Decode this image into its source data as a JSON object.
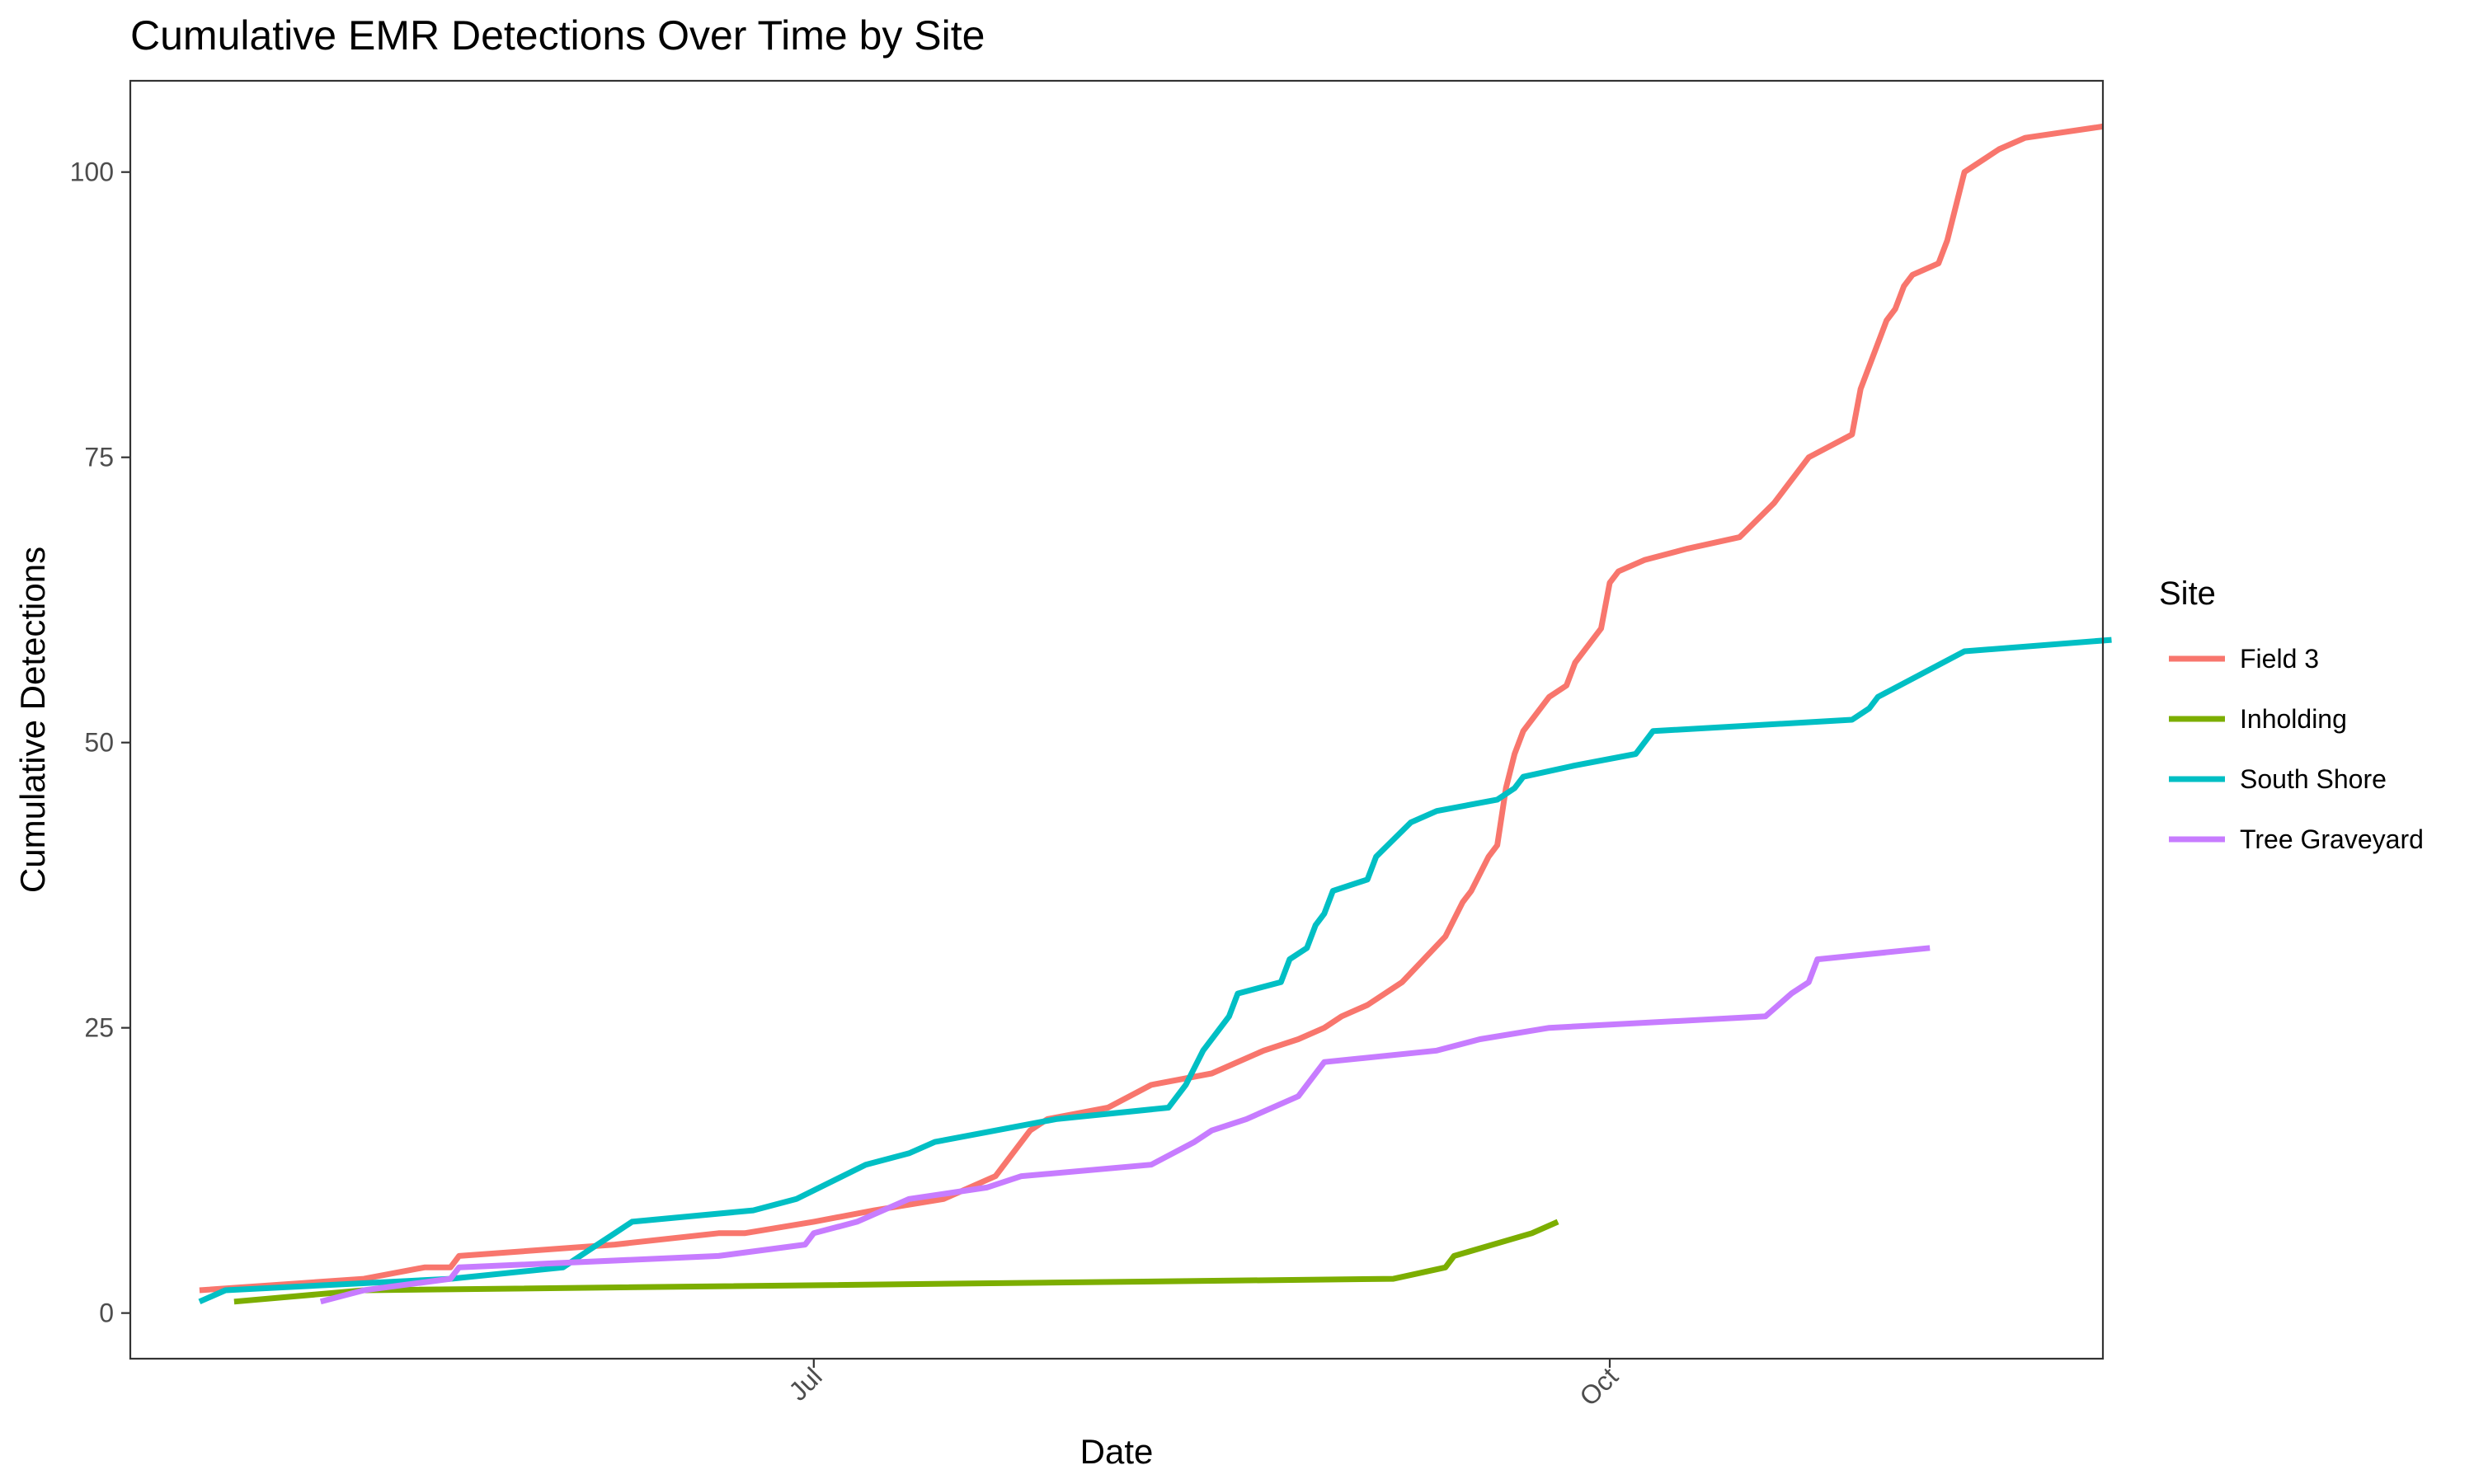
{
  "chart_data": {
    "type": "line",
    "title": "Cumulative EMR Detections Over Time by Site",
    "xlabel": "Date",
    "ylabel": "Cumulative Detections",
    "xlim": [
      "2023-04-13",
      "2023-11-27"
    ],
    "ylim": [
      -4,
      108
    ],
    "x_ticks": [
      {
        "date": "2023-07-01",
        "label": "Jul"
      },
      {
        "date": "2023-10-01",
        "label": "Oct"
      }
    ],
    "y_ticks": [
      0,
      25,
      50,
      75,
      100
    ],
    "grid": false,
    "legend": {
      "title": "Site",
      "position": "right"
    },
    "series": [
      {
        "name": "Field 3",
        "color": "#F8766D",
        "points": [
          [
            "2023-04-21",
            2
          ],
          [
            "2023-05-10",
            3
          ],
          [
            "2023-05-17",
            4
          ],
          [
            "2023-05-20",
            4
          ],
          [
            "2023-05-21",
            5
          ],
          [
            "2023-06-08",
            6
          ],
          [
            "2023-06-20",
            7
          ],
          [
            "2023-06-23",
            7
          ],
          [
            "2023-07-01",
            8
          ],
          [
            "2023-07-08",
            9
          ],
          [
            "2023-07-16",
            10
          ],
          [
            "2023-07-22",
            12
          ],
          [
            "2023-07-26",
            16
          ],
          [
            "2023-07-28",
            17
          ],
          [
            "2023-08-04",
            18
          ],
          [
            "2023-08-09",
            20
          ],
          [
            "2023-08-16",
            21
          ],
          [
            "2023-08-22",
            23
          ],
          [
            "2023-08-26",
            24
          ],
          [
            "2023-08-29",
            25
          ],
          [
            "2023-08-31",
            26
          ],
          [
            "2023-09-03",
            27
          ],
          [
            "2023-09-07",
            29
          ],
          [
            "2023-09-12",
            33
          ],
          [
            "2023-09-14",
            36
          ],
          [
            "2023-09-15",
            37
          ],
          [
            "2023-09-17",
            40
          ],
          [
            "2023-09-18",
            41
          ],
          [
            "2023-09-19",
            46
          ],
          [
            "2023-09-20",
            49
          ],
          [
            "2023-09-21",
            51
          ],
          [
            "2023-09-24",
            54
          ],
          [
            "2023-09-26",
            55
          ],
          [
            "2023-09-27",
            57
          ],
          [
            "2023-09-30",
            60
          ],
          [
            "2023-10-01",
            64
          ],
          [
            "2023-10-02",
            65
          ],
          [
            "2023-10-05",
            66
          ],
          [
            "2023-10-10",
            67
          ],
          [
            "2023-10-16",
            68
          ],
          [
            "2023-10-20",
            71
          ],
          [
            "2023-10-24",
            75
          ],
          [
            "2023-10-29",
            77
          ],
          [
            "2023-10-30",
            81
          ],
          [
            "2023-11-02",
            87
          ],
          [
            "2023-11-03",
            88
          ],
          [
            "2023-11-04",
            90
          ],
          [
            "2023-11-05",
            91
          ],
          [
            "2023-11-08",
            92
          ],
          [
            "2023-11-09",
            94
          ],
          [
            "2023-11-11",
            100
          ],
          [
            "2023-11-15",
            102
          ],
          [
            "2023-11-18",
            103
          ],
          [
            "2023-11-27",
            104
          ]
        ]
      },
      {
        "name": "Inholding",
        "color": "#7CAE00",
        "points": [
          [
            "2023-04-25",
            1
          ],
          [
            "2023-05-10",
            2
          ],
          [
            "2023-09-06",
            3
          ],
          [
            "2023-09-12",
            4
          ],
          [
            "2023-09-13",
            5
          ],
          [
            "2023-09-22",
            7
          ],
          [
            "2023-09-25",
            8
          ]
        ]
      },
      {
        "name": "South Shore",
        "color": "#00BFC4",
        "points": [
          [
            "2023-04-21",
            1
          ],
          [
            "2023-04-24",
            2
          ],
          [
            "2023-05-20",
            3
          ],
          [
            "2023-06-02",
            4
          ],
          [
            "2023-06-06",
            6
          ],
          [
            "2023-06-08",
            7
          ],
          [
            "2023-06-10",
            8
          ],
          [
            "2023-06-24",
            9
          ],
          [
            "2023-06-29",
            10
          ],
          [
            "2023-07-07",
            13
          ],
          [
            "2023-07-12",
            14
          ],
          [
            "2023-07-15",
            15
          ],
          [
            "2023-07-29",
            17
          ],
          [
            "2023-08-11",
            18
          ],
          [
            "2023-08-13",
            20
          ],
          [
            "2023-08-15",
            23
          ],
          [
            "2023-08-18",
            26
          ],
          [
            "2023-08-19",
            28
          ],
          [
            "2023-08-24",
            29
          ],
          [
            "2023-08-25",
            31
          ],
          [
            "2023-08-27",
            32
          ],
          [
            "2023-08-28",
            34
          ],
          [
            "2023-08-29",
            35
          ],
          [
            "2023-08-30",
            37
          ],
          [
            "2023-09-03",
            38
          ],
          [
            "2023-09-04",
            40
          ],
          [
            "2023-09-08",
            43
          ],
          [
            "2023-09-11",
            44
          ],
          [
            "2023-09-18",
            45
          ],
          [
            "2023-09-20",
            46
          ],
          [
            "2023-09-21",
            47
          ],
          [
            "2023-09-27",
            48
          ],
          [
            "2023-10-04",
            49
          ],
          [
            "2023-10-06",
            51
          ],
          [
            "2023-10-29",
            52
          ],
          [
            "2023-10-31",
            53
          ],
          [
            "2023-11-01",
            54
          ],
          [
            "2023-11-11",
            58
          ],
          [
            "2023-11-28",
            59
          ]
        ]
      },
      {
        "name": "Tree Graveyard",
        "color": "#C77CFF",
        "points": [
          [
            "2023-05-05",
            1
          ],
          [
            "2023-05-10",
            2
          ],
          [
            "2023-05-20",
            3
          ],
          [
            "2023-05-21",
            4
          ],
          [
            "2023-06-20",
            5
          ],
          [
            "2023-06-30",
            6
          ],
          [
            "2023-07-01",
            7
          ],
          [
            "2023-07-06",
            8
          ],
          [
            "2023-07-12",
            10
          ],
          [
            "2023-07-21",
            11
          ],
          [
            "2023-07-25",
            12
          ],
          [
            "2023-08-09",
            13
          ],
          [
            "2023-08-14",
            15
          ],
          [
            "2023-08-16",
            16
          ],
          [
            "2023-08-20",
            17
          ],
          [
            "2023-08-26",
            19
          ],
          [
            "2023-08-29",
            22
          ],
          [
            "2023-09-11",
            23
          ],
          [
            "2023-09-16",
            24
          ],
          [
            "2023-09-24",
            25
          ],
          [
            "2023-10-19",
            26
          ],
          [
            "2023-10-22",
            28
          ],
          [
            "2023-10-24",
            29
          ],
          [
            "2023-10-25",
            31
          ],
          [
            "2023-11-07",
            32
          ]
        ]
      }
    ]
  }
}
